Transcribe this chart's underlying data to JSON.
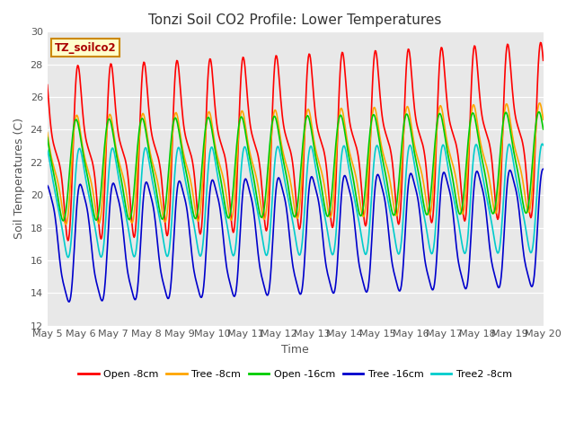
{
  "title": "Tonzi Soil CO2 Profile: Lower Temperatures",
  "xlabel": "Time",
  "ylabel": "Soil Temperatures (C)",
  "ylim": [
    12,
    30
  ],
  "x_tick_labels": [
    "May 5",
    "May 6",
    "May 7",
    "May 8",
    "May 9",
    "May 10",
    "May 11",
    "May 12",
    "May 13",
    "May 14",
    "May 15",
    "May 16",
    "May 17",
    "May 18",
    "May 19",
    "May 20"
  ],
  "series_colors": {
    "Open -8cm": "#FF0000",
    "Tree -8cm": "#FFA500",
    "Open -16cm": "#00CC00",
    "Tree -16cm": "#0000CC",
    "Tree2 -8cm": "#00CCCC"
  },
  "legend_label": "TZ_soilco2",
  "background_color": "#E8E8E8",
  "title_fontsize": 11,
  "axis_label_fontsize": 9,
  "tick_fontsize": 8,
  "line_width": 1.2
}
